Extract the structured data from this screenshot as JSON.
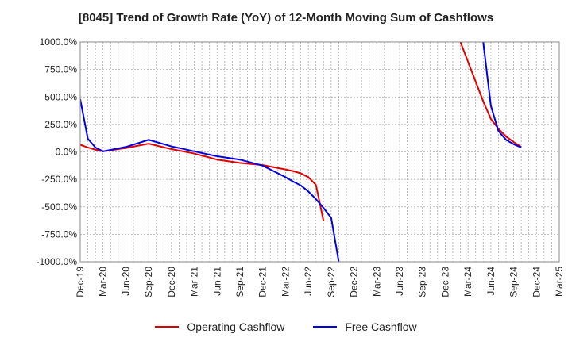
{
  "chart_data": {
    "type": "line",
    "title": "[8045]  Trend of Growth Rate (YoY) of 12-Month Moving Sum of Cashflows",
    "xlabel": "",
    "ylabel": "",
    "ylim": [
      -1000,
      1000
    ],
    "y_ticks": [
      "1000.0%",
      "750.0%",
      "500.0%",
      "250.0%",
      "0.0%",
      "-250.0%",
      "-500.0%",
      "-750.0%",
      "-1000.0%"
    ],
    "y_tick_values": [
      1000,
      750,
      500,
      250,
      0,
      -250,
      -500,
      -750,
      -1000
    ],
    "x_start": "Dec-19",
    "x_end": "Mar-25",
    "x_ticks": [
      "Dec-19",
      "Mar-20",
      "Jun-20",
      "Sep-20",
      "Dec-20",
      "Mar-21",
      "Jun-21",
      "Sep-21",
      "Dec-21",
      "Mar-22",
      "Jun-22",
      "Sep-22",
      "Dec-22",
      "Mar-23",
      "Jun-23",
      "Sep-23",
      "Dec-23",
      "Mar-24",
      "Jun-24",
      "Sep-24",
      "Dec-24",
      "Mar-25"
    ],
    "grid": true,
    "legend_position": "bottom",
    "series": [
      {
        "name": "Operating Cashflow",
        "color": "#e00000",
        "segments": [
          [
            [
              "Dec-19",
              65
            ],
            [
              "Jan-20",
              40
            ],
            [
              "Feb-20",
              20
            ],
            [
              "Mar-20",
              5
            ],
            [
              "Jun-20",
              35
            ],
            [
              "Sep-20",
              75
            ],
            [
              "Dec-20",
              25
            ],
            [
              "Mar-21",
              -15
            ],
            [
              "Jun-21",
              -70
            ],
            [
              "Sep-21",
              -100
            ],
            [
              "Dec-21",
              -120
            ],
            [
              "Mar-22",
              -160
            ],
            [
              "Apr-22",
              -175
            ],
            [
              "May-22",
              -195
            ],
            [
              "Jun-22",
              -230
            ],
            [
              "Jul-22",
              -300
            ],
            [
              "Aug-22",
              -630
            ]
          ],
          [
            [
              "Feb-24",
              1000
            ],
            [
              "Mar-24",
              820
            ],
            [
              "Apr-24",
              640
            ],
            [
              "May-24",
              460
            ],
            [
              "Jun-24",
              300
            ],
            [
              "Jul-24",
              210
            ],
            [
              "Aug-24",
              140
            ],
            [
              "Sep-24",
              90
            ],
            [
              "Oct-24",
              45
            ]
          ]
        ]
      },
      {
        "name": "Free Cashflow",
        "color": "#0000e0",
        "segments": [
          [
            [
              "Dec-19",
              480
            ],
            [
              "Jan-20",
              120
            ],
            [
              "Feb-20",
              40
            ],
            [
              "Mar-20",
              5
            ],
            [
              "Jun-20",
              45
            ],
            [
              "Sep-20",
              110
            ],
            [
              "Dec-20",
              50
            ],
            [
              "Mar-21",
              5
            ],
            [
              "Jun-21",
              -40
            ],
            [
              "Sep-21",
              -70
            ],
            [
              "Dec-21",
              -125
            ],
            [
              "Mar-22",
              -230
            ],
            [
              "Apr-22",
              -270
            ],
            [
              "May-22",
              -305
            ],
            [
              "Jun-22",
              -360
            ],
            [
              "Jul-22",
              -430
            ],
            [
              "Aug-22",
              -510
            ],
            [
              "Sep-22",
              -600
            ],
            [
              "Oct-22",
              -1000
            ]
          ],
          [
            [
              "May-24",
              1000
            ],
            [
              "Jun-24",
              420
            ],
            [
              "Jul-24",
              190
            ],
            [
              "Aug-24",
              110
            ],
            [
              "Sep-24",
              70
            ],
            [
              "Oct-24",
              40
            ]
          ]
        ]
      }
    ]
  }
}
